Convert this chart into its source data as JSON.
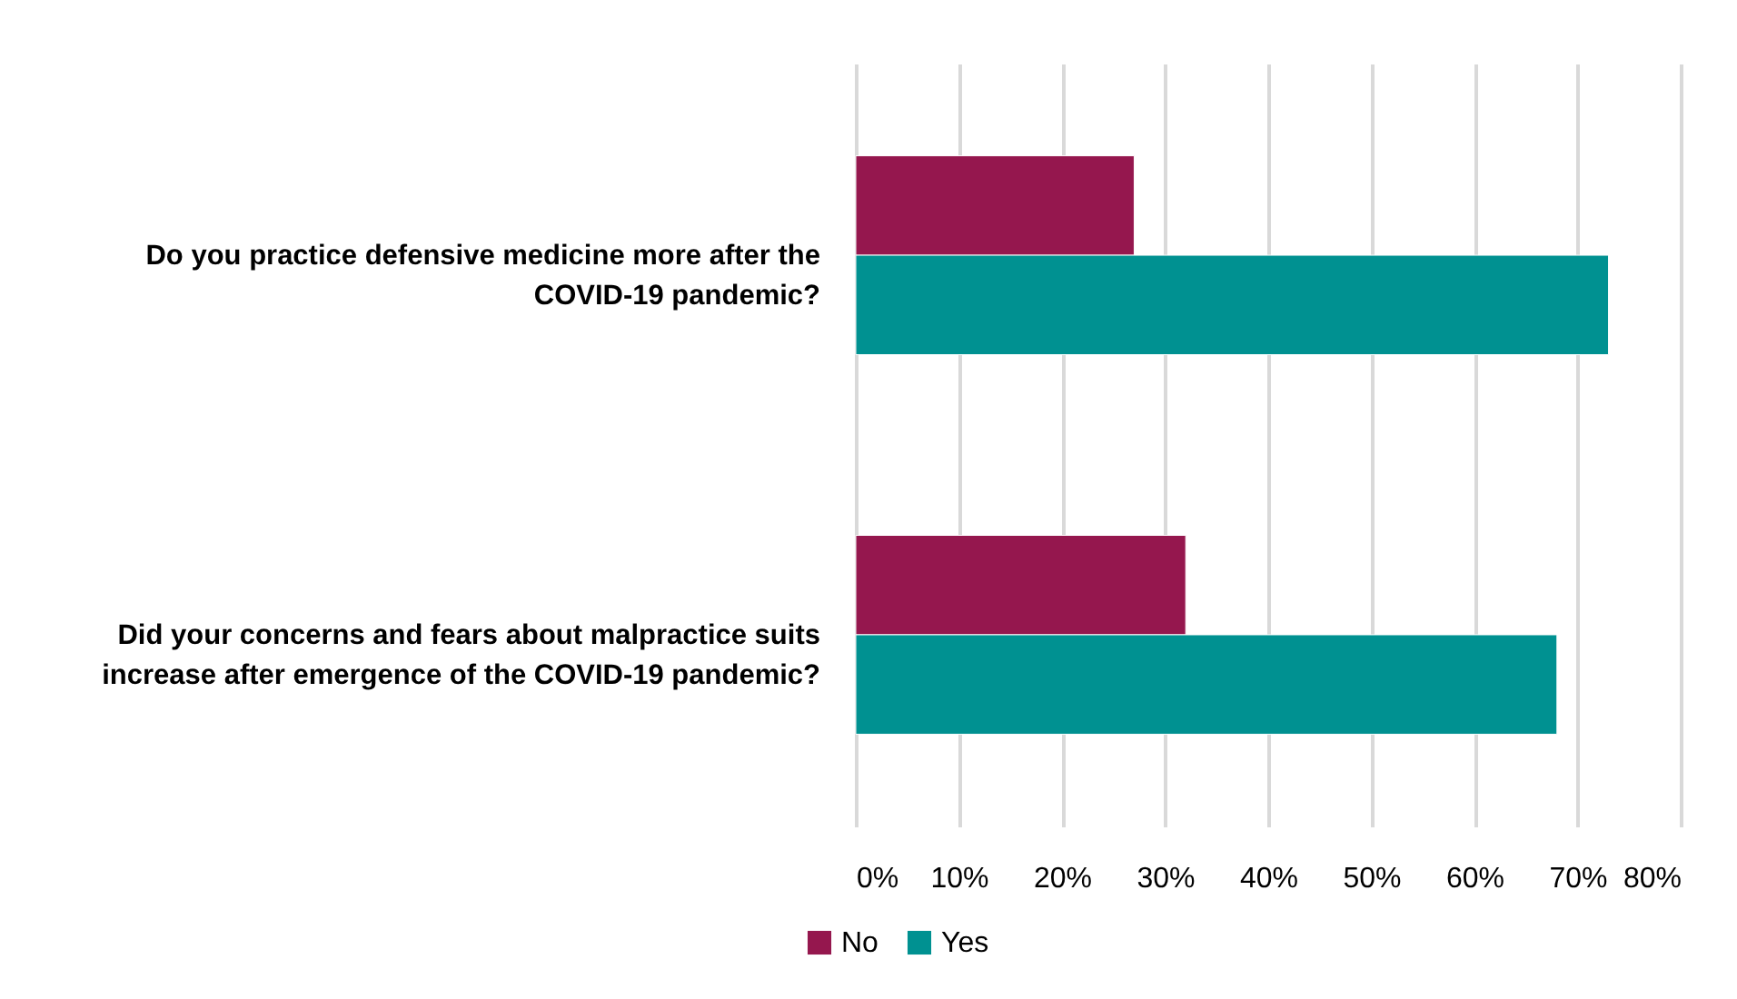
{
  "chart_data": {
    "type": "bar",
    "orientation": "horizontal",
    "categories": [
      "Do you practice defensive medicine more after the\nCOVID-19 pandemic?",
      "Did your concerns and fears about malpractice suits\nincrease after emergence of the COVID-19 pandemic?"
    ],
    "series": [
      {
        "name": "No",
        "color": "#95174e",
        "values": [
          27,
          32
        ]
      },
      {
        "name": "Yes",
        "color": "#009191",
        "values": [
          73,
          68
        ]
      }
    ],
    "xlim": [
      0,
      80
    ],
    "xticks": [
      {
        "value": 0,
        "label": "0%"
      },
      {
        "value": 10,
        "label": "10%"
      },
      {
        "value": 20,
        "label": "20%"
      },
      {
        "value": 30,
        "label": "30%"
      },
      {
        "value": 40,
        "label": "40%"
      },
      {
        "value": 50,
        "label": "50%"
      },
      {
        "value": 60,
        "label": "60%"
      },
      {
        "value": 70,
        "label": "70%"
      },
      {
        "value": 80,
        "label": "80%"
      }
    ],
    "grid": "x",
    "legend": "bottom"
  }
}
